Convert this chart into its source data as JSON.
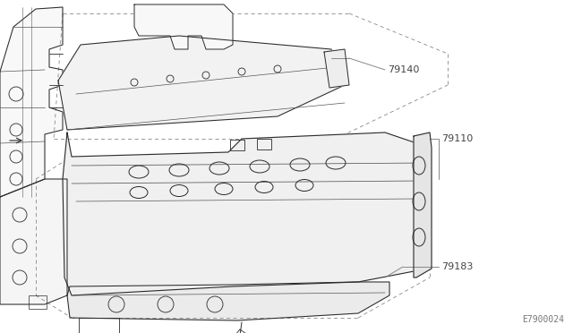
{
  "background_color": "#ffffff",
  "line_color": "#2a2a2a",
  "light_line_color": "#555555",
  "dashed_color": "#888888",
  "leader_color": "#888888",
  "label_color": "#444444",
  "diagram_ref": "E7900024",
  "label_79140": "79140",
  "label_79110": "79110",
  "label_79183": "79183",
  "figsize": [
    6.4,
    3.72
  ],
  "dpi": 100
}
